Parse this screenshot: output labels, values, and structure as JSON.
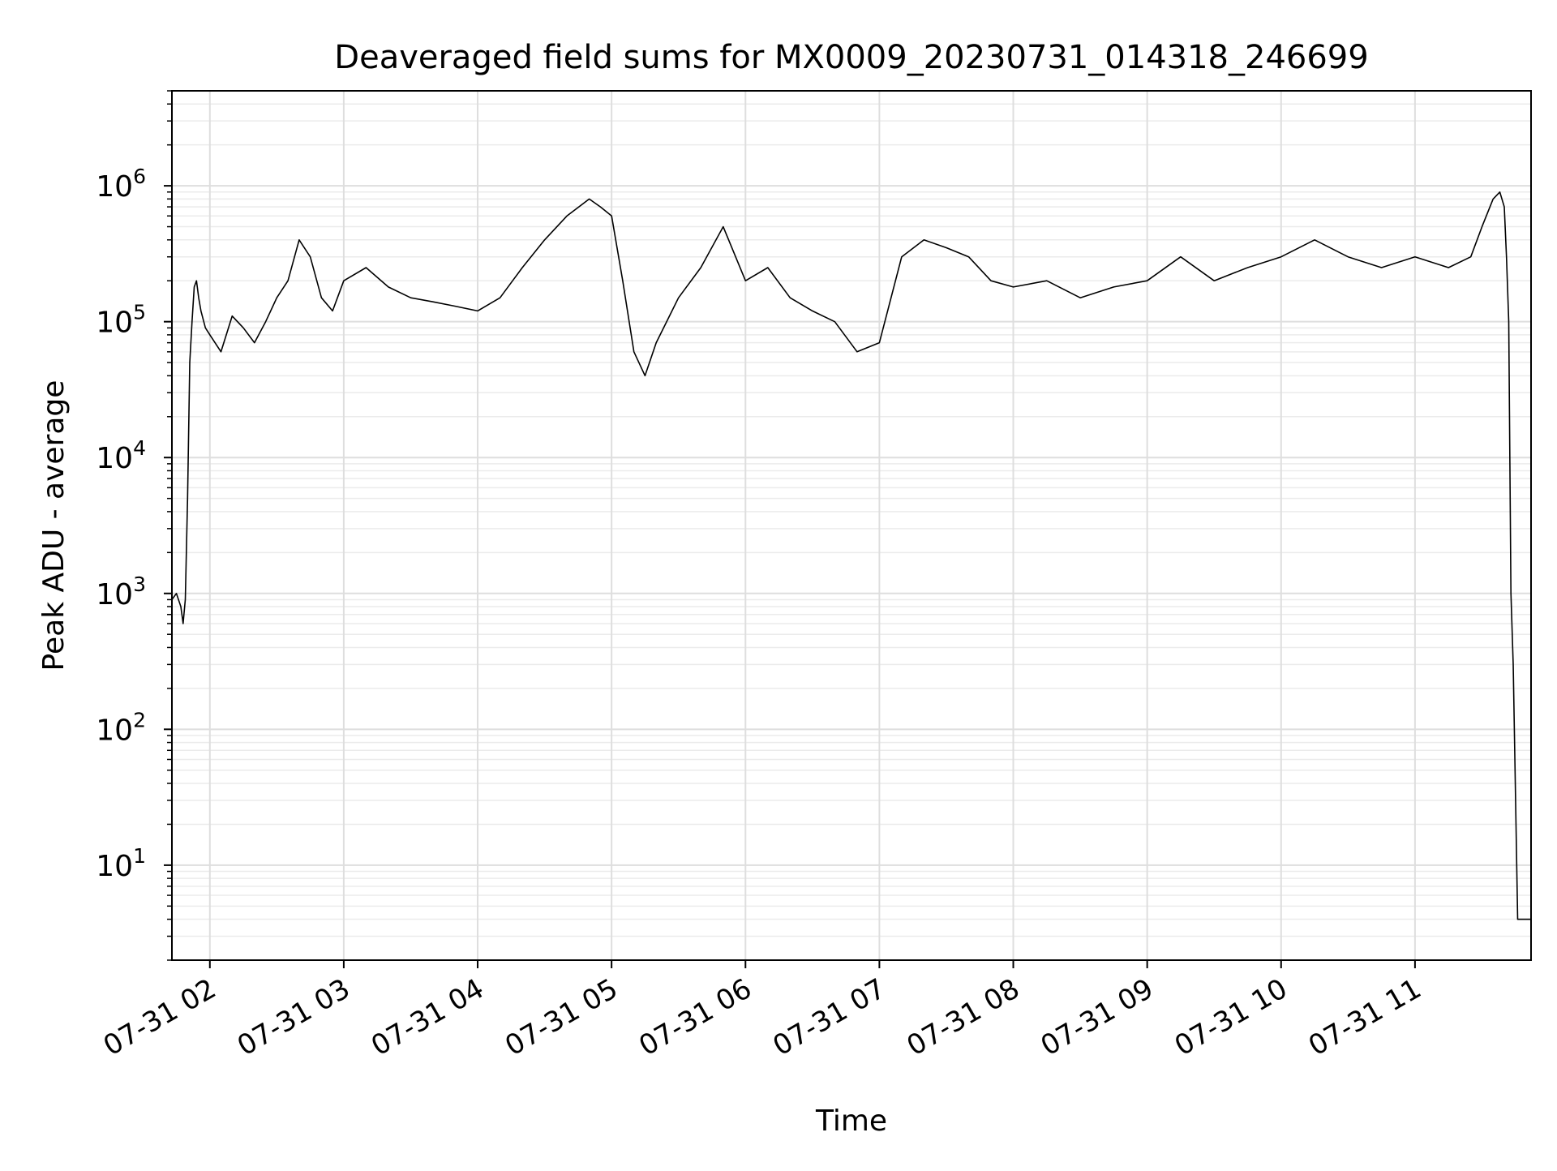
{
  "chart_data": {
    "type": "line",
    "title": "Deaveraged field sums for MX0009_20230731_014318_246699",
    "xlabel": "Time",
    "ylabel": "Peak ADU - average",
    "yscale": "log",
    "ylim": [
      2,
      5000000
    ],
    "xlim": [
      "2023-07-31 01:43",
      "2023-07-31 11:52"
    ],
    "grid": "on (major and minor)",
    "line_color": "#000000",
    "x_ticks": [
      {
        "t": "2023-07-31 02:00",
        "label": "07-31 02"
      },
      {
        "t": "2023-07-31 03:00",
        "label": "07-31 03"
      },
      {
        "t": "2023-07-31 04:00",
        "label": "07-31 04"
      },
      {
        "t": "2023-07-31 05:00",
        "label": "07-31 05"
      },
      {
        "t": "2023-07-31 06:00",
        "label": "07-31 06"
      },
      {
        "t": "2023-07-31 07:00",
        "label": "07-31 07"
      },
      {
        "t": "2023-07-31 08:00",
        "label": "07-31 08"
      },
      {
        "t": "2023-07-31 09:00",
        "label": "07-31 09"
      },
      {
        "t": "2023-07-31 10:00",
        "label": "07-31 10"
      },
      {
        "t": "2023-07-31 11:00",
        "label": "07-31 11"
      }
    ],
    "y_ticks": [
      {
        "value": 10,
        "base": "10",
        "exp": "1"
      },
      {
        "value": 100,
        "base": "10",
        "exp": "2"
      },
      {
        "value": 1000,
        "base": "10",
        "exp": "3"
      },
      {
        "value": 10000,
        "base": "10",
        "exp": "4"
      },
      {
        "value": 100000,
        "base": "10",
        "exp": "5"
      },
      {
        "value": 1000000,
        "base": "10",
        "exp": "6"
      }
    ],
    "series": [
      {
        "x": [
          "2023-07-31 01:43",
          "2023-07-31 01:45",
          "2023-07-31 01:47",
          "2023-07-31 01:48",
          "2023-07-31 01:49",
          "2023-07-31 01:50",
          "2023-07-31 01:51",
          "2023-07-31 01:52",
          "2023-07-31 01:53",
          "2023-07-31 01:54",
          "2023-07-31 01:55",
          "2023-07-31 01:56",
          "2023-07-31 01:58",
          "2023-07-31 02:00",
          "2023-07-31 02:05",
          "2023-07-31 02:10",
          "2023-07-31 02:15",
          "2023-07-31 02:20",
          "2023-07-31 02:25",
          "2023-07-31 02:30",
          "2023-07-31 02:35",
          "2023-07-31 02:40",
          "2023-07-31 02:45",
          "2023-07-31 02:50",
          "2023-07-31 02:55",
          "2023-07-31 03:00",
          "2023-07-31 03:10",
          "2023-07-31 03:20",
          "2023-07-31 03:30",
          "2023-07-31 03:40",
          "2023-07-31 03:50",
          "2023-07-31 04:00",
          "2023-07-31 04:10",
          "2023-07-31 04:20",
          "2023-07-31 04:30",
          "2023-07-31 04:40",
          "2023-07-31 04:50",
          "2023-07-31 04:55",
          "2023-07-31 05:00",
          "2023-07-31 05:05",
          "2023-07-31 05:10",
          "2023-07-31 05:15",
          "2023-07-31 05:20",
          "2023-07-31 05:30",
          "2023-07-31 05:40",
          "2023-07-31 05:50",
          "2023-07-31 06:00",
          "2023-07-31 06:10",
          "2023-07-31 06:20",
          "2023-07-31 06:30",
          "2023-07-31 06:40",
          "2023-07-31 06:50",
          "2023-07-31 07:00",
          "2023-07-31 07:10",
          "2023-07-31 07:20",
          "2023-07-31 07:30",
          "2023-07-31 07:40",
          "2023-07-31 07:50",
          "2023-07-31 08:00",
          "2023-07-31 08:15",
          "2023-07-31 08:30",
          "2023-07-31 08:45",
          "2023-07-31 09:00",
          "2023-07-31 09:15",
          "2023-07-31 09:30",
          "2023-07-31 09:45",
          "2023-07-31 10:00",
          "2023-07-31 10:15",
          "2023-07-31 10:30",
          "2023-07-31 10:45",
          "2023-07-31 11:00",
          "2023-07-31 11:15",
          "2023-07-31 11:25",
          "2023-07-31 11:30",
          "2023-07-31 11:35",
          "2023-07-31 11:38",
          "2023-07-31 11:40",
          "2023-07-31 11:41",
          "2023-07-31 11:42",
          "2023-07-31 11:43",
          "2023-07-31 11:44",
          "2023-07-31 11:46",
          "2023-07-31 11:50",
          "2023-07-31 11:52"
        ],
        "y": [
          900,
          1000,
          800,
          600,
          900,
          5000,
          50000,
          100000,
          180000,
          200000,
          150000,
          120000,
          90000,
          80000,
          60000,
          110000,
          90000,
          70000,
          100000,
          150000,
          200000,
          400000,
          300000,
          150000,
          120000,
          200000,
          250000,
          180000,
          150000,
          140000,
          130000,
          120000,
          150000,
          250000,
          400000,
          600000,
          800000,
          700000,
          600000,
          200000,
          60000,
          40000,
          70000,
          150000,
          250000,
          500000,
          200000,
          250000,
          150000,
          120000,
          100000,
          60000,
          70000,
          300000,
          400000,
          350000,
          300000,
          200000,
          180000,
          200000,
          150000,
          180000,
          200000,
          300000,
          200000,
          250000,
          300000,
          400000,
          300000,
          250000,
          300000,
          250000,
          300000,
          500000,
          800000,
          900000,
          700000,
          300000,
          100000,
          1000,
          300,
          4,
          4,
          4
        ]
      }
    ]
  }
}
